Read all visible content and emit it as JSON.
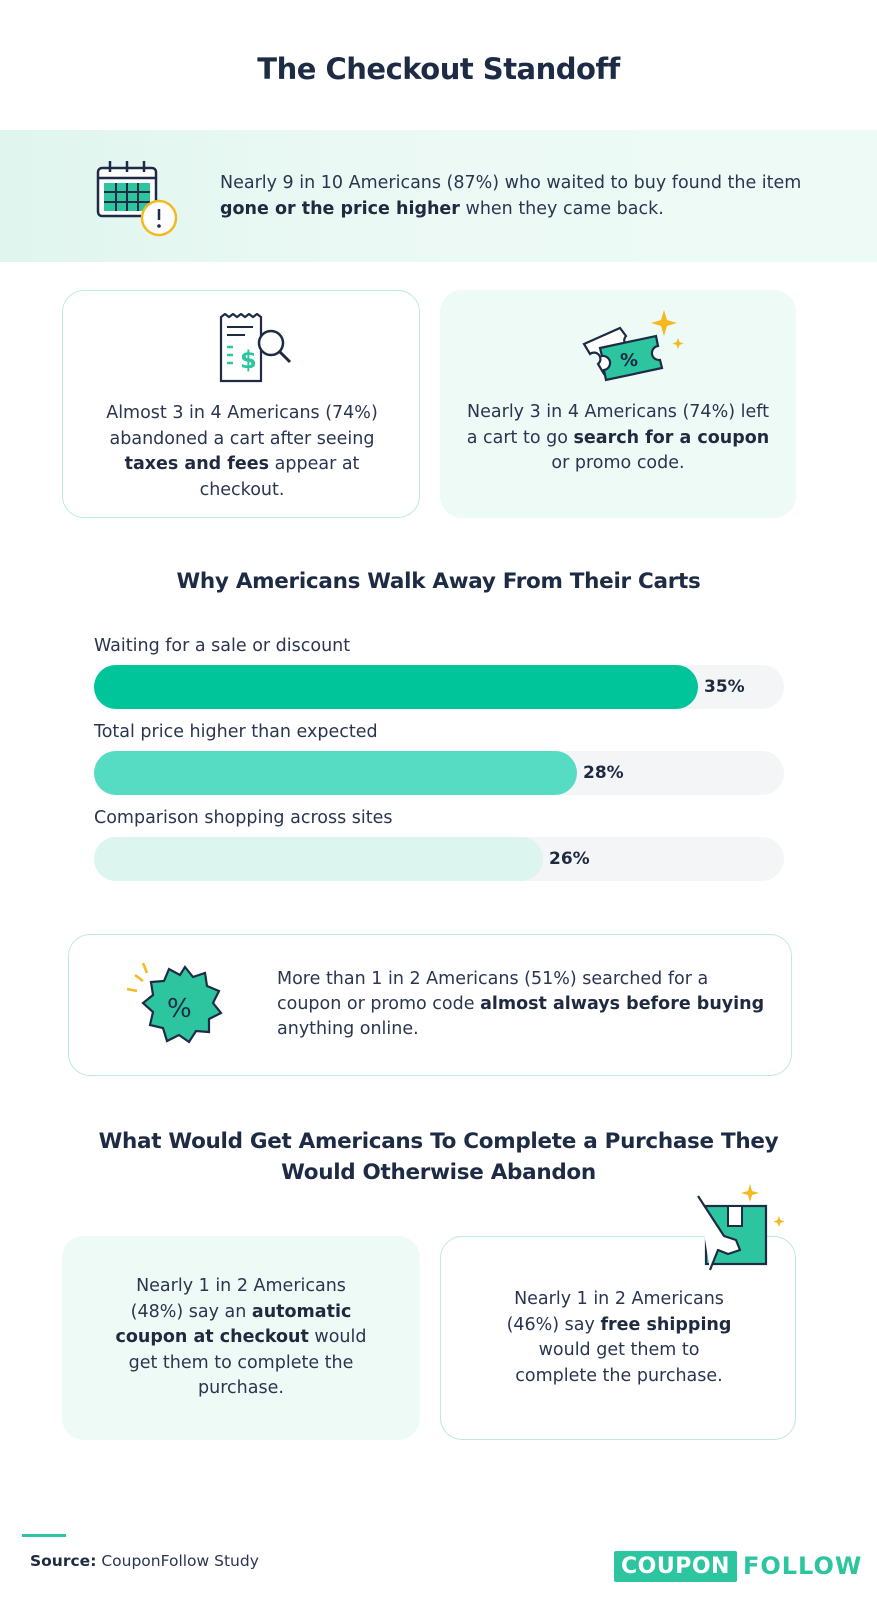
{
  "title": "The Checkout Standoff",
  "banner": {
    "text_pre": "Nearly 9 in 10 Americans (87%) who waited to buy found the item ",
    "text_bold": "gone or the price higher",
    "text_post": " when they came back."
  },
  "cards_top": [
    {
      "icon": "receipt-search-icon",
      "line_pre": "Almost 3 in 4 Americans (74%) abandoned a cart after seeing ",
      "bold": "taxes and fees",
      "line_post": " appear at checkout."
    },
    {
      "icon": "coupon-ticket-icon",
      "line_pre": "Nearly 3 in 4 Americans (74%) left a cart to go ",
      "bold": "search for a coupon",
      "line_post": " or promo code."
    }
  ],
  "section1_title": "Why Americans Walk Away From Their Carts",
  "chart_data": {
    "type": "bar",
    "orientation": "horizontal",
    "categories": [
      "Waiting for a sale or discount",
      "Total price higher than expected",
      "Comparison shopping across sites"
    ],
    "values": [
      35,
      28,
      26
    ],
    "value_labels": [
      "35%",
      "28%",
      "26%"
    ],
    "colors": [
      "#00c49a",
      "#56dcc2",
      "#dcf5ef"
    ],
    "title": "Why Americans Walk Away From Their Carts",
    "xlim": [
      0,
      40
    ]
  },
  "mid_card": {
    "icon": "percent-badge-icon",
    "text_pre": "More than 1 in 2 Americans (51%) searched for a coupon or promo code ",
    "text_bold": "almost always before buying",
    "text_post": " anything online."
  },
  "section2_title_line1": "What Would Get Americans To Complete a Purchase They",
  "section2_title_line2": "Would Otherwise Abandon",
  "cards_bottom": [
    {
      "text_pre": "Nearly 1 in 2 Americans (48%) say an ",
      "bold": "automatic coupon at checkout",
      "text_post": " would get them to complete the purchase."
    },
    {
      "icon": "package-hand-icon",
      "text_pre": "Nearly 1 in 2 Americans (46%) say ",
      "bold": "free shipping",
      "text_post": " would get them to complete the purchase."
    }
  ],
  "source": {
    "label": "Source:",
    "value": " CouponFollow Study"
  },
  "logo": {
    "box": "COUPON",
    "rest": "FOLLOW"
  },
  "colors": {
    "accent": "#2cc5a0",
    "navy": "#1e2b45",
    "gold": "#f5b920"
  }
}
